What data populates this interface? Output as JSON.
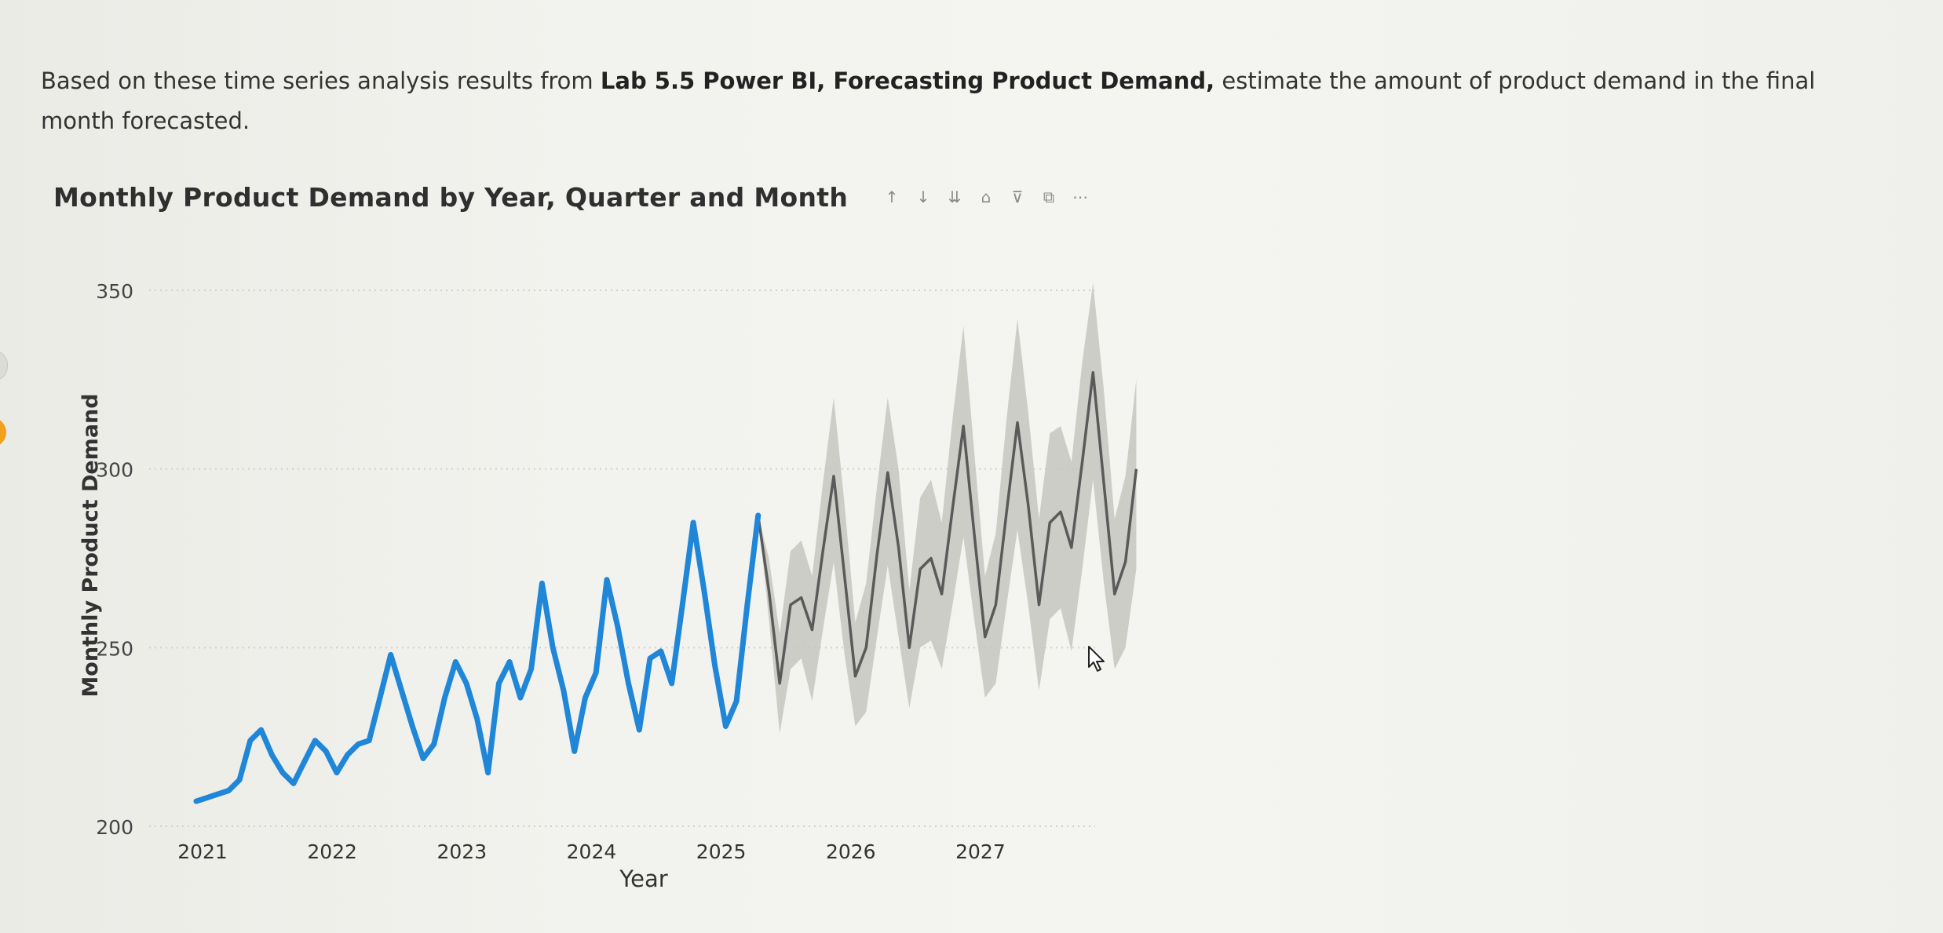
{
  "question": {
    "before": "Based on these time series analysis results from ",
    "bold": "Lab 5.5 Power BI, Forecasting Product Demand,",
    "after": " estimate the amount of product demand in the final month forecasted."
  },
  "toolbar_icons": [
    "arrow-up-icon",
    "arrow-down-icon",
    "expand-all-icon",
    "drill-up-icon",
    "filter-icon",
    "focus-mode-icon",
    "more-options-icon"
  ],
  "toolbar_glyphs": [
    "↑",
    "↓",
    "⇊",
    "⌂",
    "⊽",
    "⧉",
    "⋯"
  ],
  "colors": {
    "actual_line": "#1f86d8",
    "forecast_line": "#5a5a5a",
    "confidence_band": "#c6c6c0",
    "gridline": "#d0d0cb"
  },
  "chart_data": {
    "type": "line",
    "title": "Monthly Product Demand by Year, Quarter and Month",
    "xlabel": "Year",
    "ylabel": "Monthly Product Demand",
    "ylim": [
      200,
      350
    ],
    "yticks": [
      200,
      250,
      300,
      350
    ],
    "xlim": [
      2021,
      2027.83
    ],
    "xticks": [
      "2021",
      "2022",
      "2023",
      "2024",
      "2025",
      "2026",
      "2027"
    ],
    "grid": "horizontal dotted",
    "series": [
      {
        "kind": "actual",
        "start": "2021-01",
        "values": [
          207,
          208,
          209,
          210,
          213,
          224,
          227,
          220,
          215,
          212,
          218,
          224,
          221,
          215,
          220,
          223,
          224,
          236,
          248,
          238,
          228,
          219,
          223,
          236,
          246,
          240,
          230,
          215,
          240,
          246,
          236,
          244,
          268,
          250,
          238,
          221,
          236,
          243,
          269,
          256,
          240,
          227,
          247,
          249,
          240,
          262,
          285,
          266,
          245,
          228,
          235,
          262,
          287
        ]
      },
      {
        "kind": "forecast",
        "start": "2025-05",
        "values": [
          287,
          266,
          240,
          262,
          264,
          255,
          277,
          298,
          270,
          242,
          250,
          276,
          299,
          278,
          250,
          272,
          275,
          265,
          289,
          312,
          282,
          253,
          262,
          288,
          313,
          290,
          262,
          285,
          288,
          278,
          302,
          327,
          296,
          265,
          274,
          300
        ],
        "lower": [
          287,
          258,
          226,
          244,
          247,
          235,
          255,
          274,
          248,
          228,
          232,
          253,
          273,
          253,
          233,
          250,
          252,
          244,
          262,
          281,
          258,
          236,
          240,
          262,
          283,
          262,
          238,
          258,
          261,
          249,
          272,
          297,
          268,
          244,
          250,
          272
        ],
        "upper": [
          287,
          275,
          254,
          277,
          280,
          270,
          296,
          320,
          290,
          257,
          268,
          295,
          320,
          300,
          266,
          292,
          297,
          285,
          314,
          340,
          305,
          270,
          282,
          314,
          342,
          316,
          286,
          310,
          312,
          302,
          330,
          352,
          322,
          286,
          298,
          325
        ]
      }
    ]
  }
}
